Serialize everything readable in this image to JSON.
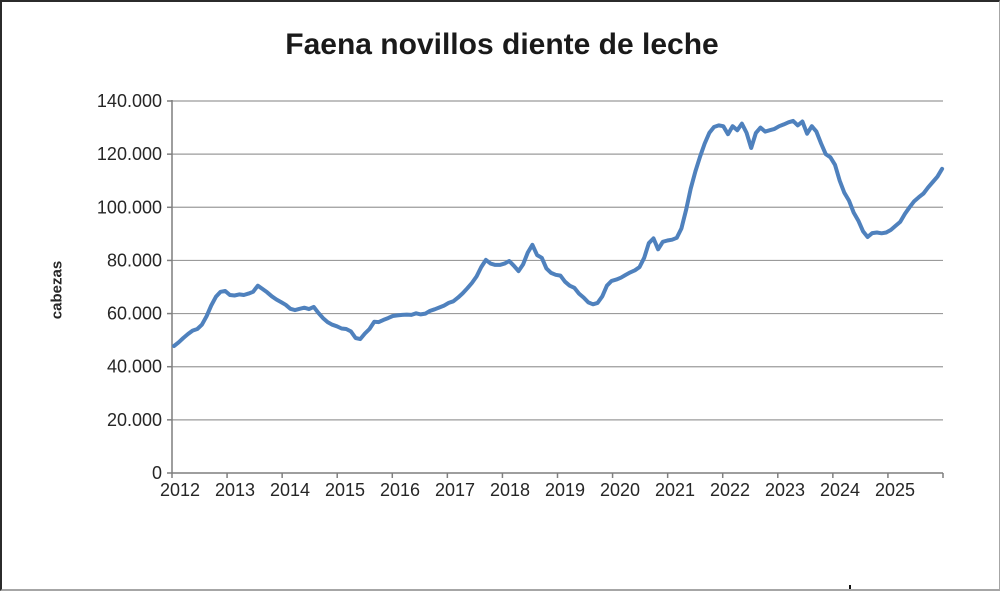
{
  "figure": {
    "title": "Faena novillos diente de leche"
  },
  "chart_data": {
    "type": "line",
    "title": "Faena novillos diente de leche",
    "xlabel": "",
    "ylabel": "cabezas",
    "ylim": [
      0,
      140000
    ],
    "y_tick_step": 20000,
    "y_tick_labels": [
      "0",
      "20.000",
      "40.000",
      "60.000",
      "80.000",
      "100.000",
      "120.000",
      "140.000"
    ],
    "x_tick_labels": [
      "2012",
      "2013",
      "2014",
      "2015",
      "2016",
      "2017",
      "2018",
      "2019",
      "2020",
      "2021",
      "2022",
      "2023",
      "2024",
      "2025"
    ],
    "frequency": "monthly",
    "x_start": "2012-01",
    "x_end": "2025-10",
    "grid": true,
    "legend_position": "none",
    "line_color": "#4F81BD",
    "gridline_color": "#9b9b9b",
    "axis_color": "#7f7f7f",
    "series": [
      {
        "name": "Faena novillos diente de leche",
        "values": [
          47800,
          49200,
          50800,
          52300,
          53600,
          54200,
          55800,
          59000,
          63000,
          66300,
          68200,
          68500,
          67000,
          66800,
          67200,
          67000,
          67500,
          68200,
          70500,
          69300,
          68000,
          66500,
          65300,
          64300,
          63300,
          61800,
          61300,
          61800,
          62200,
          61700,
          62500,
          60300,
          58300,
          56800,
          55800,
          55200,
          54400,
          54200,
          53300,
          50800,
          50400,
          52500,
          54200,
          56900,
          56800,
          57600,
          58300,
          59100,
          59300,
          59500,
          59600,
          59500,
          60100,
          59700,
          60000,
          61000,
          61600,
          62300,
          63000,
          64000,
          64600,
          66000,
          67600,
          69500,
          71500,
          74000,
          77500,
          80200,
          78800,
          78300,
          78300,
          78800,
          79800,
          78000,
          76000,
          78500,
          83000,
          85900,
          82000,
          81000,
          77000,
          75300,
          74600,
          74300,
          72000,
          70500,
          69700,
          67500,
          66000,
          64200,
          63500,
          64000,
          66500,
          70500,
          72300,
          72800,
          73500,
          74500,
          75500,
          76300,
          77500,
          81000,
          86500,
          88300,
          84200,
          87000,
          87500,
          87800,
          88500,
          92000,
          99000,
          107000,
          113500,
          119000,
          124000,
          128000,
          130200,
          130800,
          130500,
          127500,
          130500,
          129000,
          131500,
          128000,
          122300,
          128000,
          130000,
          128500,
          129000,
          129500,
          130500,
          131200,
          132000,
          132500,
          130800,
          132300,
          127700,
          130500,
          128500,
          124000,
          120000,
          118800,
          116000,
          110000,
          105500,
          102500,
          98000,
          95000,
          91000,
          88800,
          90300,
          90500,
          90200,
          90500,
          91500,
          93000,
          94500,
          97500,
          100000,
          102300,
          103800,
          105200,
          107500,
          109500,
          111500,
          114500
        ]
      }
    ]
  }
}
